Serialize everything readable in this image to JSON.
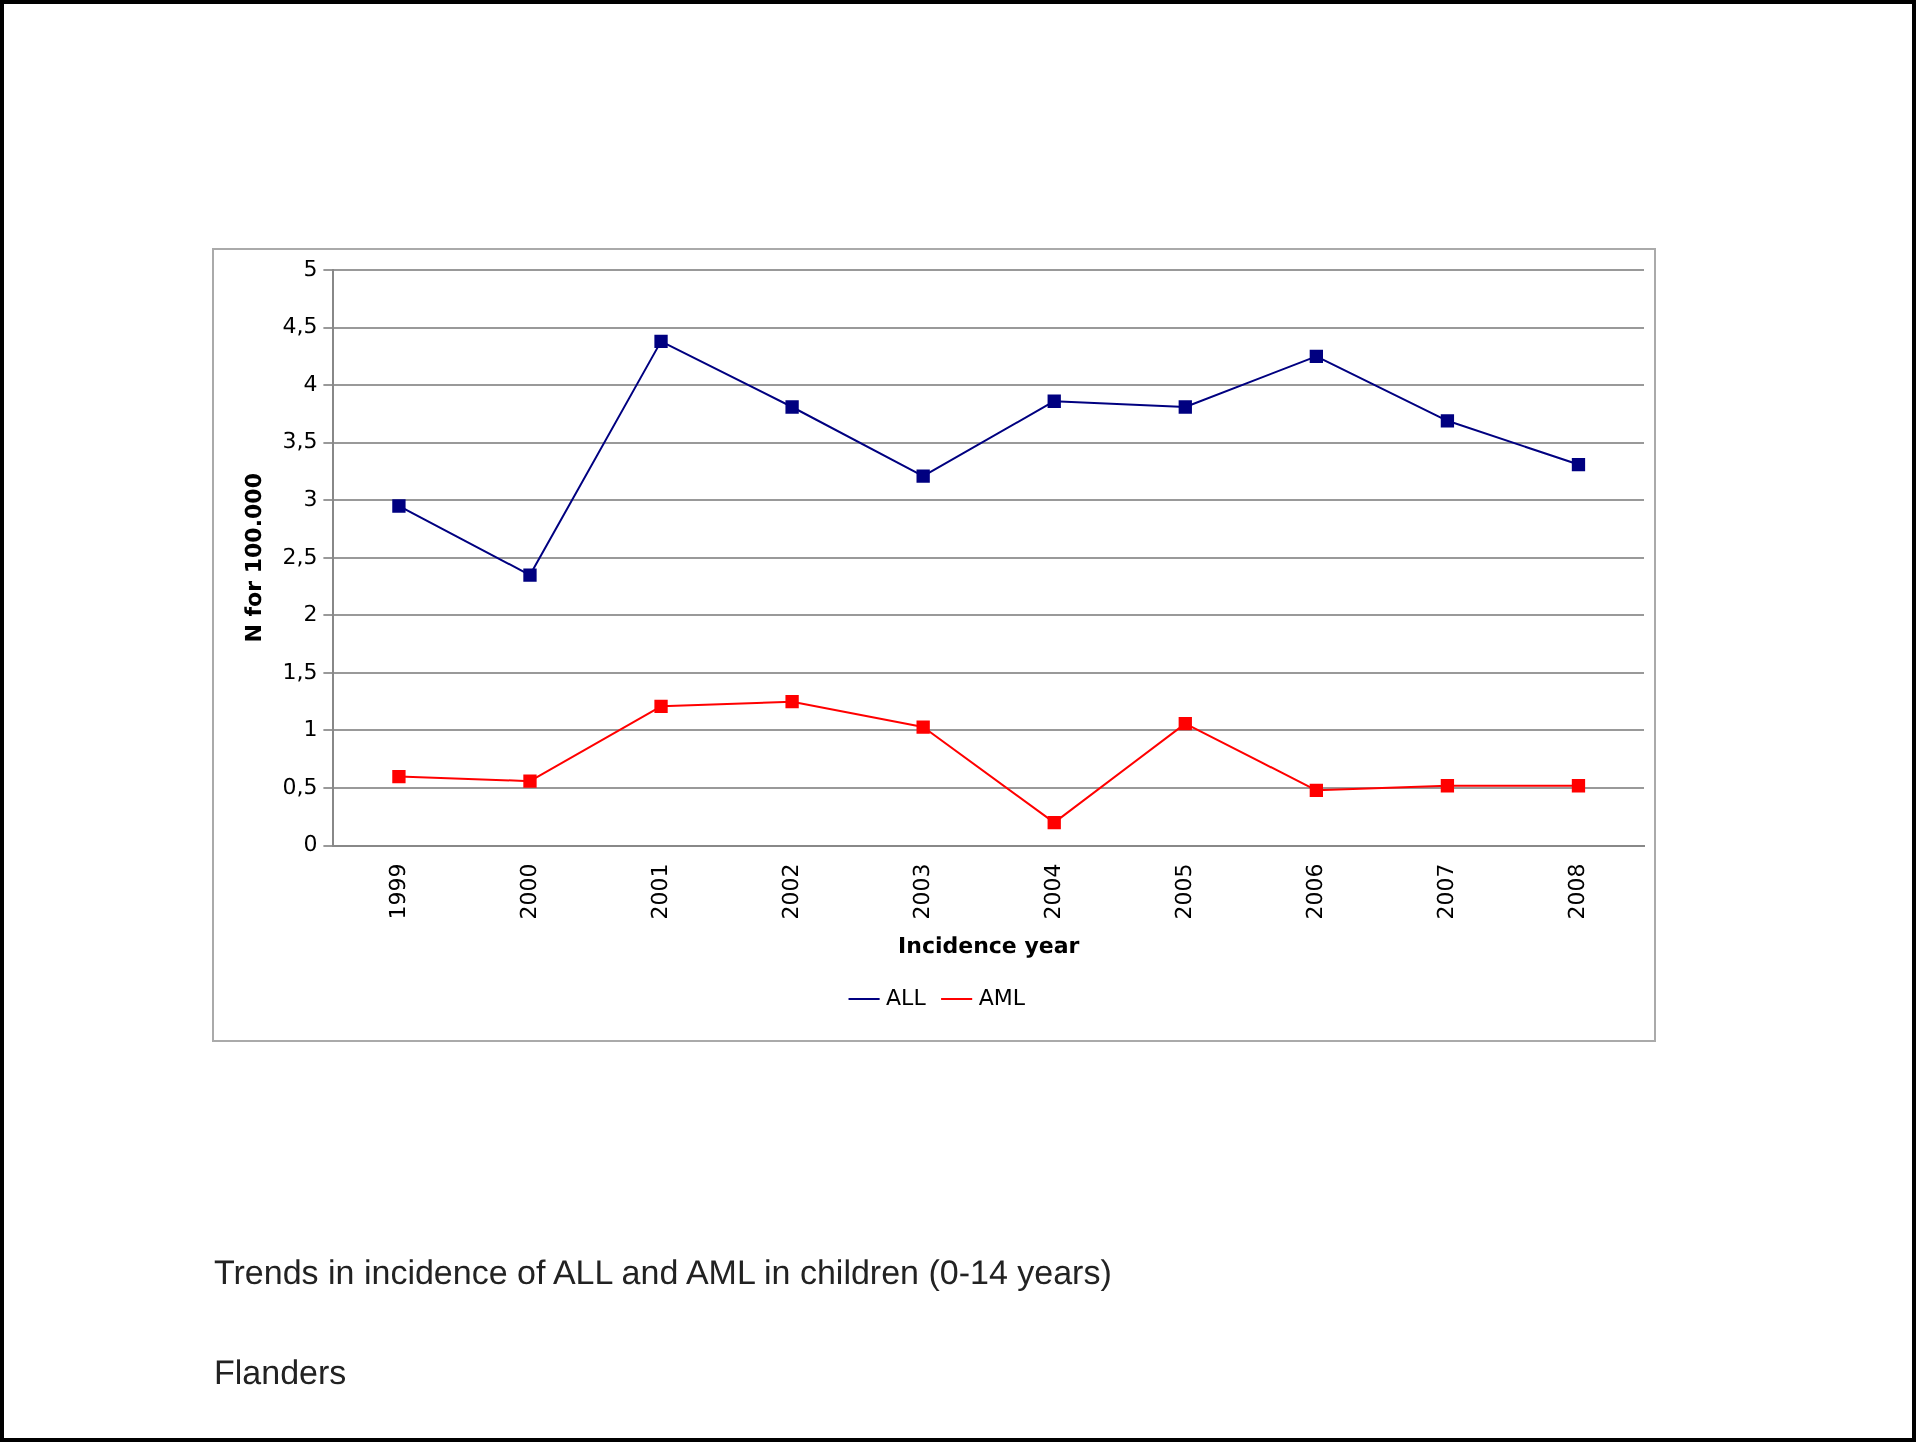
{
  "chart_data": {
    "type": "line",
    "xlabel": "Incidence year",
    "ylabel": "N for 100.000",
    "categories": [
      "1999",
      "2000",
      "2001",
      "2002",
      "2003",
      "2004",
      "2005",
      "2006",
      "2007",
      "2008"
    ],
    "series": [
      {
        "name": "ALL",
        "color": "#000080",
        "values": [
          2.95,
          2.35,
          4.38,
          3.81,
          3.21,
          3.86,
          3.81,
          4.25,
          3.69,
          3.31
        ]
      },
      {
        "name": "AML",
        "color": "#ff0000",
        "values": [
          0.6,
          0.56,
          1.21,
          1.25,
          1.03,
          0.2,
          1.06,
          0.48,
          0.52,
          0.52
        ]
      }
    ],
    "ylim": [
      0,
      5
    ],
    "yticks": [
      0,
      {
        "value": 0.5,
        "label": "0,5"
      },
      1,
      {
        "value": 1.5,
        "label": "1,5"
      },
      2,
      {
        "value": 2.5,
        "label": "2,5"
      },
      3,
      {
        "value": 3.5,
        "label": "3,5"
      },
      4,
      {
        "value": 4.5,
        "label": "4,5"
      },
      5
    ],
    "grid": "y",
    "legend": "bottom",
    "marker": "square",
    "line_style": "solid",
    "annotations": [
      "Trends in incidence of ALL and AML in children (0-14 years)",
      "Flanders"
    ]
  }
}
